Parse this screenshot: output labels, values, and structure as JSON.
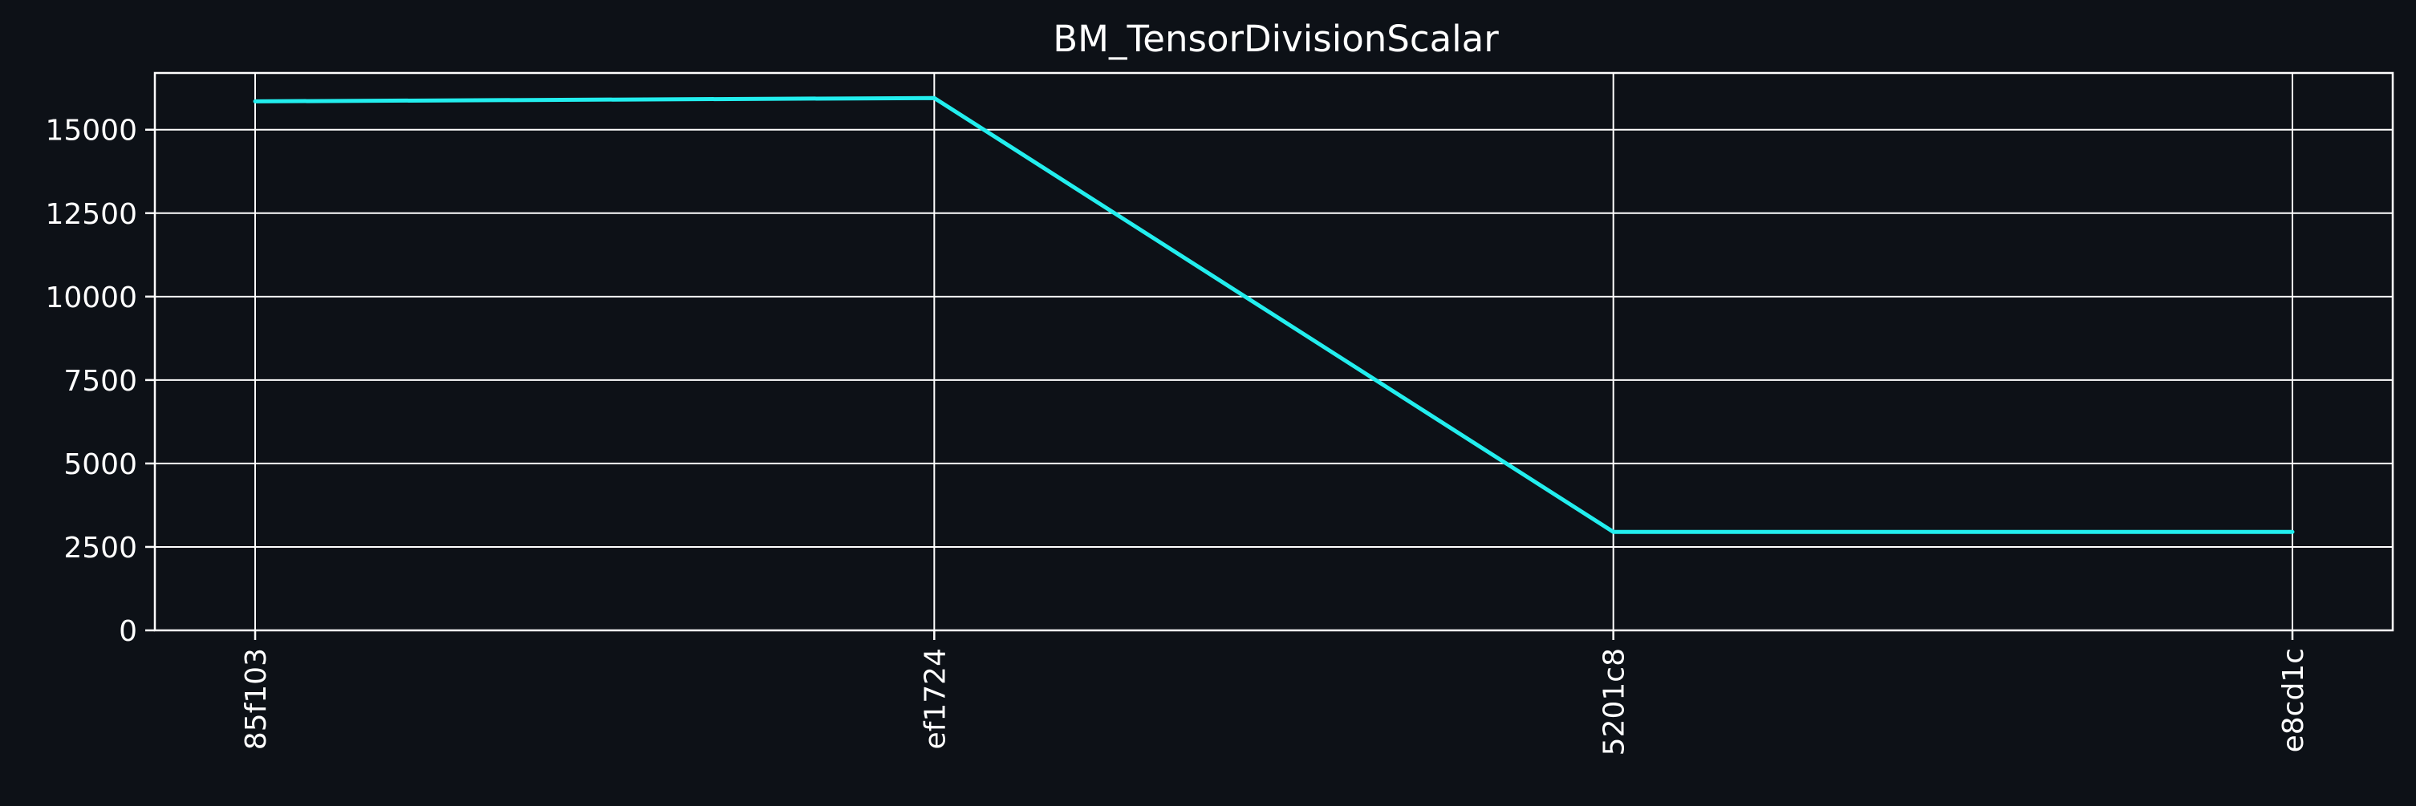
{
  "chart_data": {
    "type": "line",
    "title": "BM_TensorDivisionScalar",
    "xlabel": "",
    "ylabel": "",
    "categories": [
      "85f103",
      "ef1724",
      "5201c8",
      "e8cd1c"
    ],
    "series": [
      {
        "values": [
          15850,
          15950,
          2950,
          2950
        ],
        "color": "#22eeee"
      }
    ],
    "ylim": [
      0,
      16700
    ],
    "yticks": [
      0,
      2500,
      5000,
      7500,
      10000,
      12500,
      15000
    ],
    "grid": true,
    "legend": "none",
    "background_color": "#0d1117",
    "text_color": "#ffffff"
  }
}
